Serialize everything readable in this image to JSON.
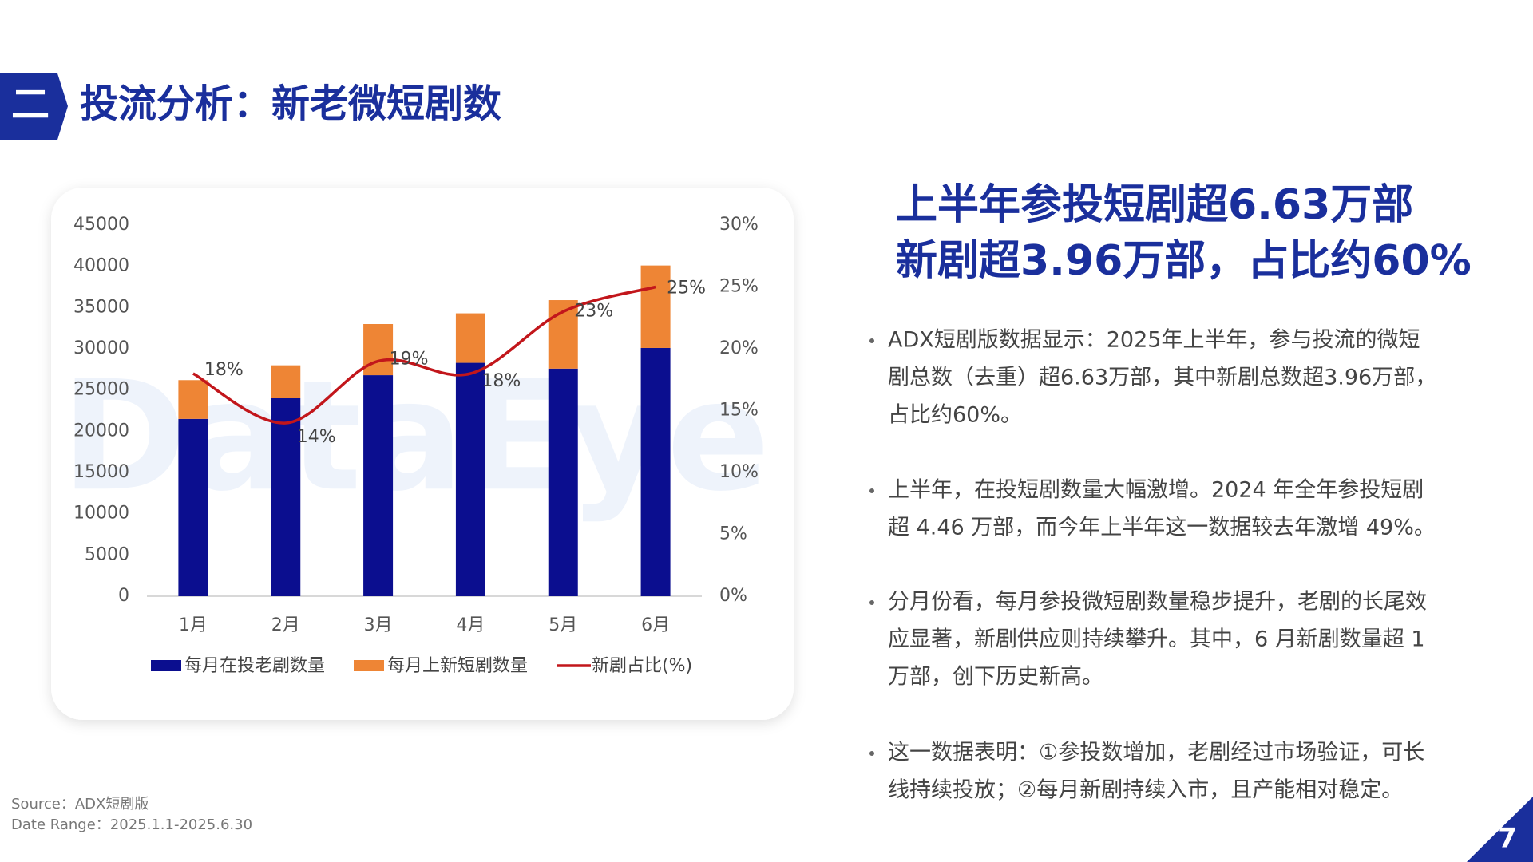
{
  "header": {
    "badge": "二",
    "title": "投流分析：新老微短剧数"
  },
  "headline": [
    "上半年参投短剧超6.63万部",
    "新剧超3.96万部，占比约60%"
  ],
  "bullets": [
    [
      "ADX短剧版数据显示：2025年上半年，参与投流的微短",
      "剧总数（去重）超6.63万部，其中新剧总数超3.96万部，",
      "占比约60%。"
    ],
    [
      "上半年，在投短剧数量大幅激增。2024 年全年参投短剧",
      "超 4.46 万部，而今年上半年这一数据较去年激增 49%。"
    ],
    [
      "分月份看，每月参投微短剧数量稳步提升，老剧的长尾效",
      "应显著，新剧供应则持续攀升。其中，6 月新剧数量超 1",
      "万部，创下历史新高。"
    ],
    [
      "这一数据表明：①参投数增加，老剧经过市场验证，可长",
      "线持续投放；②每月新剧持续入市，且产能相对稳定。"
    ]
  ],
  "source": [
    "Source：ADX短剧版",
    "Date Range：2025.1.1-2025.6.30"
  ],
  "page_number": "7",
  "chart_data": {
    "type": "stacked-bar-line",
    "watermark": "DataEye",
    "categories": [
      "1月",
      "2月",
      "3月",
      "4月",
      "5月",
      "6月"
    ],
    "series": [
      {
        "name": "每月在投老剧数量",
        "color": "#0b0e8f",
        "values": [
          21500,
          24000,
          26800,
          28300,
          27600,
          30100
        ]
      },
      {
        "name": "每月上新短剧数量",
        "color": "#ee8535",
        "values": [
          4700,
          4000,
          6200,
          6000,
          8300,
          10000
        ]
      },
      {
        "name": "新剧占比(%)",
        "color": "#c2161b",
        "axis": "y2",
        "values": [
          18,
          14,
          19,
          18,
          23,
          25
        ],
        "value_labels": [
          "18%",
          "14%",
          "19%",
          "18%",
          "23%",
          "25%"
        ]
      }
    ],
    "ylim": [
      0,
      45000
    ],
    "yticks": [
      0,
      5000,
      10000,
      15000,
      20000,
      25000,
      30000,
      35000,
      40000,
      45000
    ],
    "y2lim": [
      0,
      30
    ],
    "y2ticks": [
      {
        "value": 0,
        "label": "0%"
      },
      {
        "value": 5,
        "label": "5%"
      },
      {
        "value": 10,
        "label": "10%"
      },
      {
        "value": 15,
        "label": "15%"
      },
      {
        "value": 20,
        "label": "20%"
      },
      {
        "value": 25,
        "label": "25%"
      },
      {
        "value": 30,
        "label": "30%"
      }
    ],
    "grid": false,
    "legend": "bottom"
  }
}
